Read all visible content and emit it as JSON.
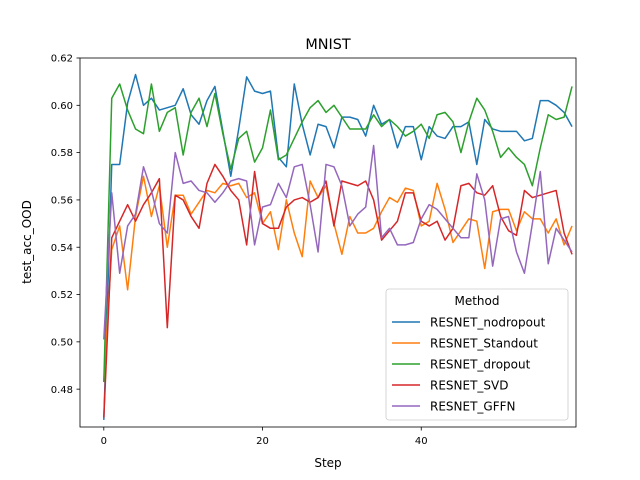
{
  "chart_data": {
    "type": "line",
    "title": "MNIST",
    "xlabel": "Step",
    "ylabel": "test_acc_OOD",
    "xlim": [
      -3.0,
      59.5
    ],
    "ylim": [
      0.464,
      0.62
    ],
    "xticks": [
      0,
      20,
      40
    ],
    "yticks": [
      0.48,
      0.5,
      0.52,
      0.54,
      0.56,
      0.58,
      0.6,
      0.62
    ],
    "ytick_labels": [
      "0.48",
      "0.50",
      "0.52",
      "0.54",
      "0.56",
      "0.58",
      "0.60",
      "0.62"
    ],
    "grid": false,
    "legend": {
      "title": "Method",
      "placement": "lower-right"
    },
    "x": [
      0,
      1,
      2,
      3,
      4,
      5,
      6,
      7,
      8,
      9,
      10,
      11,
      12,
      13,
      14,
      15,
      16,
      17,
      18,
      19,
      20,
      21,
      22,
      23,
      24,
      25,
      26,
      27,
      28,
      29,
      30,
      31,
      32,
      33,
      34,
      35,
      36,
      37,
      38,
      39,
      40,
      41,
      42,
      43,
      44,
      45,
      46,
      47,
      48,
      49,
      50,
      51,
      52,
      53,
      54,
      55,
      56,
      57,
      58,
      59
    ],
    "series": [
      {
        "name": "RESNET_nodropout",
        "color": "#1f77b4",
        "values": [
          0.467,
          0.575,
          0.575,
          0.601,
          0.613,
          0.6,
          0.603,
          0.598,
          0.599,
          0.6,
          0.607,
          0.596,
          0.592,
          0.602,
          0.608,
          0.589,
          0.57,
          0.59,
          0.612,
          0.606,
          0.605,
          0.606,
          0.578,
          0.574,
          0.609,
          0.592,
          0.579,
          0.592,
          0.591,
          0.582,
          0.595,
          0.595,
          0.594,
          0.587,
          0.6,
          0.592,
          0.594,
          0.582,
          0.591,
          0.591,
          0.577,
          0.591,
          0.587,
          0.586,
          0.591,
          0.591,
          0.593,
          0.575,
          0.594,
          0.59,
          0.589,
          0.589,
          0.589,
          0.585,
          0.586,
          0.602,
          0.602,
          0.6,
          0.597,
          0.591
        ]
      },
      {
        "name": "RESNET_Standout",
        "color": "#ff7f0e",
        "values": [
          0.483,
          0.539,
          0.549,
          0.522,
          0.553,
          0.57,
          0.553,
          0.566,
          0.54,
          0.562,
          0.562,
          0.554,
          0.559,
          0.564,
          0.563,
          0.567,
          0.566,
          0.567,
          0.561,
          0.563,
          0.55,
          0.555,
          0.539,
          0.56,
          0.546,
          0.536,
          0.568,
          0.561,
          0.566,
          0.55,
          0.537,
          0.553,
          0.546,
          0.546,
          0.548,
          0.555,
          0.561,
          0.559,
          0.565,
          0.564,
          0.549,
          0.551,
          0.567,
          0.556,
          0.542,
          0.547,
          0.552,
          0.551,
          0.531,
          0.555,
          0.556,
          0.556,
          0.547,
          0.555,
          0.552,
          0.552,
          0.546,
          0.552,
          0.541,
          0.549
        ]
      },
      {
        "name": "RESNET_dropout",
        "color": "#2ca02c",
        "values": [
          0.483,
          0.603,
          0.609,
          0.598,
          0.59,
          0.588,
          0.609,
          0.589,
          0.597,
          0.599,
          0.579,
          0.597,
          0.603,
          0.591,
          0.605,
          0.588,
          0.573,
          0.586,
          0.589,
          0.576,
          0.582,
          0.598,
          0.577,
          0.579,
          0.586,
          0.593,
          0.599,
          0.602,
          0.597,
          0.6,
          0.595,
          0.59,
          0.59,
          0.59,
          0.596,
          0.591,
          0.594,
          0.591,
          0.587,
          0.589,
          0.592,
          0.586,
          0.596,
          0.597,
          0.593,
          0.58,
          0.593,
          0.603,
          0.598,
          0.589,
          0.578,
          0.582,
          0.578,
          0.575,
          0.566,
          0.582,
          0.596,
          0.594,
          0.595,
          0.608
        ]
      },
      {
        "name": "RESNET_SVD",
        "color": "#d62728",
        "values": [
          0.468,
          0.544,
          0.551,
          0.558,
          0.551,
          0.558,
          0.563,
          0.569,
          0.506,
          0.562,
          0.56,
          0.553,
          0.548,
          0.567,
          0.575,
          0.57,
          0.564,
          0.56,
          0.541,
          0.572,
          0.55,
          0.548,
          0.548,
          0.557,
          0.56,
          0.561,
          0.559,
          0.561,
          0.568,
          0.549,
          0.568,
          0.567,
          0.566,
          0.568,
          0.56,
          0.543,
          0.547,
          0.551,
          0.563,
          0.563,
          0.551,
          0.549,
          0.551,
          0.543,
          0.548,
          0.566,
          0.567,
          0.563,
          0.562,
          0.566,
          0.553,
          0.547,
          0.545,
          0.564,
          0.561,
          0.562,
          0.563,
          0.564,
          0.546,
          0.537
        ]
      },
      {
        "name": "RESNET_GFFN",
        "color": "#9467bd",
        "values": [
          0.501,
          0.563,
          0.529,
          0.549,
          0.554,
          0.574,
          0.564,
          0.55,
          0.546,
          0.58,
          0.567,
          0.568,
          0.564,
          0.563,
          0.559,
          0.563,
          0.568,
          0.569,
          0.568,
          0.541,
          0.557,
          0.558,
          0.567,
          0.561,
          0.574,
          0.575,
          0.558,
          0.538,
          0.575,
          0.574,
          0.566,
          0.549,
          0.554,
          0.557,
          0.583,
          0.544,
          0.548,
          0.541,
          0.541,
          0.542,
          0.552,
          0.558,
          0.556,
          0.552,
          0.548,
          0.544,
          0.544,
          0.571,
          0.56,
          0.532,
          0.552,
          0.553,
          0.538,
          0.529,
          0.55,
          0.572,
          0.533,
          0.548,
          0.543,
          0.538
        ]
      }
    ]
  }
}
